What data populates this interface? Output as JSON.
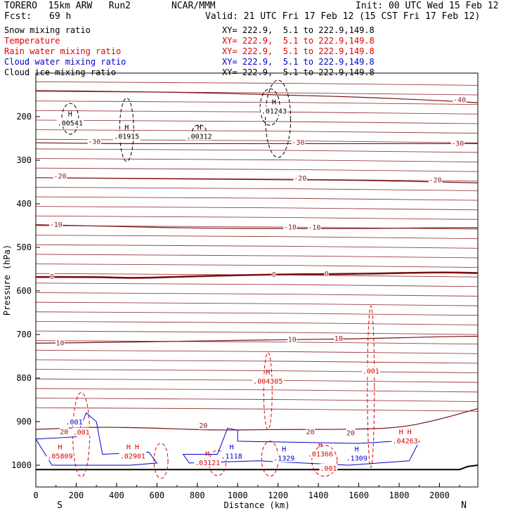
{
  "header": {
    "model": "TORERO  15km ARW   Run2",
    "org": "NCAR/MMM",
    "init": "Init: 00 UTC Wed 15 Feb 12",
    "fcst_label": "Fcst:",
    "fcst_value": "69 h",
    "valid": "Valid: 21 UTC Fri 17 Feb 12 (15 CST Fri 17 Feb 12)"
  },
  "legend": [
    {
      "name": "Snow mixing ratio",
      "xy": "XY= 222.9,  5.1 to 222.9,149.8",
      "color": "#000000"
    },
    {
      "name": "Temperature",
      "xy": "XY= 222.9,  5.1 to 222.9,149.8",
      "color": "#e00000"
    },
    {
      "name": "Rain water mixing ratio",
      "xy": "XY= 222.9,  5.1 to 222.9,149.8",
      "color": "#e00000"
    },
    {
      "name": "Cloud water mixing ratio",
      "xy": "XY= 222.9,  5.1 to 222.9,149.8",
      "color": "#0000cc"
    },
    {
      "name": "Cloud ice mixing ratio",
      "xy": "XY= 222.9,  5.1 to 222.9,149.8",
      "color": "#000000"
    }
  ],
  "chart_data": {
    "type": "line",
    "title": "Vertical cross section",
    "xlabel": "Distance (km)",
    "ylabel": "Pressure (hPa)",
    "xlim": [
      0,
      2190
    ],
    "ylim": [
      1050,
      100
    ],
    "x_ticks": [
      0,
      200,
      400,
      600,
      800,
      1000,
      1200,
      1400,
      1600,
      1800,
      2000
    ],
    "y_ticks": [
      200,
      300,
      400,
      500,
      600,
      700,
      800,
      900,
      1000
    ],
    "end_labels": {
      "left": "S",
      "right": "N"
    },
    "temperature_isotherms": [
      {
        "temp": -40,
        "label": "-40",
        "points": [
          [
            0,
            140
          ],
          [
            400,
            142
          ],
          [
            800,
            145
          ],
          [
            1200,
            150
          ],
          [
            1600,
            155
          ],
          [
            2000,
            163
          ],
          [
            2190,
            168
          ]
        ]
      },
      {
        "temp": -30,
        "label": "-30",
        "points": [
          [
            0,
            260
          ],
          [
            400,
            262
          ],
          [
            800,
            262
          ],
          [
            1200,
            262
          ],
          [
            1600,
            262
          ],
          [
            2000,
            262
          ],
          [
            2190,
            262
          ]
        ]
      },
      {
        "temp": -20,
        "label": "-20",
        "points": [
          [
            0,
            340
          ],
          [
            400,
            342
          ],
          [
            800,
            343
          ],
          [
            1200,
            345
          ],
          [
            1600,
            346
          ],
          [
            2000,
            350
          ],
          [
            2190,
            352
          ]
        ]
      },
      {
        "temp": -10,
        "label": "-10",
        "points": [
          [
            0,
            448
          ],
          [
            400,
            452
          ],
          [
            800,
            456
          ],
          [
            1200,
            457
          ],
          [
            1600,
            457
          ],
          [
            2000,
            455
          ],
          [
            2190,
            455
          ]
        ]
      },
      {
        "temp": 0,
        "label": "0",
        "points": [
          [
            0,
            568
          ],
          [
            300,
            568
          ],
          [
            500,
            571
          ],
          [
            800,
            566
          ],
          [
            1200,
            562
          ],
          [
            1600,
            561
          ],
          [
            2000,
            557
          ],
          [
            2190,
            559
          ]
        ]
      },
      {
        "temp": 10,
        "label": "10",
        "points": [
          [
            0,
            720
          ],
          [
            400,
            718
          ],
          [
            800,
            715
          ],
          [
            1200,
            712
          ],
          [
            1600,
            710
          ],
          [
            2000,
            705
          ],
          [
            2190,
            704
          ]
        ]
      },
      {
        "temp": 20,
        "label": "20",
        "points": [
          [
            0,
            918
          ],
          [
            300,
            912
          ],
          [
            600,
            915
          ],
          [
            900,
            920
          ],
          [
            1200,
            918
          ],
          [
            1500,
            918
          ],
          [
            1800,
            915
          ],
          [
            2000,
            895
          ],
          [
            2190,
            870
          ]
        ]
      }
    ],
    "contour_extrema": [
      {
        "label": "H",
        "value": ".00541",
        "x": 170,
        "p": 215,
        "color": "#000000"
      },
      {
        "label": "H",
        "value": ".01915",
        "x": 450,
        "p": 246,
        "color": "#000000"
      },
      {
        "label": "H",
        "value": ".00312",
        "x": 810,
        "p": 246,
        "color": "#000000"
      },
      {
        "label": "H",
        "value": ".01243",
        "x": 1180,
        "p": 188,
        "color": "#000000"
      },
      {
        "label": "H",
        "value": ".004305",
        "x": 1150,
        "p": 808,
        "color": "#e00000"
      },
      {
        "label": "",
        "value": ".001",
        "x": 1660,
        "p": 785,
        "color": "#e00000"
      },
      {
        "label": "H H",
        "value": ".04263",
        "x": 1830,
        "p": 945,
        "color": "#e00000"
      },
      {
        "label": "H",
        "value": ".05809",
        "x": 120,
        "p": 980,
        "color": "#e00000"
      },
      {
        "label": "H H",
        "value": ".02901",
        "x": 480,
        "p": 980,
        "color": "#e00000"
      },
      {
        "label": "H",
        "value": ".03121",
        "x": 850,
        "p": 995,
        "color": "#e00000"
      },
      {
        "label": "H",
        "value": ".1118",
        "x": 970,
        "p": 980,
        "color": "#0000cc"
      },
      {
        "label": "H",
        "value": ".1329",
        "x": 1230,
        "p": 985,
        "color": "#0000cc"
      },
      {
        "label": "H",
        "value": ".01366",
        "x": 1410,
        "p": 975,
        "color": "#e00000"
      },
      {
        "label": "H",
        "value": ".1309",
        "x": 1590,
        "p": 985,
        "color": "#0000cc"
      },
      {
        "label": "",
        "value": ".001",
        "x": 1450,
        "p": 1008,
        "color": "#e00000"
      },
      {
        "label": "",
        "value": ".001",
        "x": 190,
        "p": 902,
        "color": "#0000cc"
      },
      {
        "label": "",
        "value": ".001",
        "x": 225,
        "p": 925,
        "color": "#e00000"
      },
      {
        "label": "",
        "value": "20",
        "x": 140,
        "p": 924,
        "color": "#8b1a1a"
      },
      {
        "label": "",
        "value": "20",
        "x": 830,
        "p": 910,
        "color": "#8b1a1a"
      },
      {
        "label": "",
        "value": "20",
        "x": 1360,
        "p": 924,
        "color": "#8b1a1a"
      },
      {
        "label": "",
        "value": "20",
        "x": 1560,
        "p": 927,
        "color": "#8b1a1a"
      },
      {
        "label": "",
        "value": "-30",
        "x": 290,
        "p": 258,
        "color": "#8b1a1a"
      },
      {
        "label": "",
        "value": "-30",
        "x": 1300,
        "p": 260,
        "color": "#8b1a1a"
      },
      {
        "label": "",
        "value": "-30",
        "x": 2090,
        "p": 262,
        "color": "#8b1a1a"
      },
      {
        "label": "",
        "value": "-20",
        "x": 120,
        "p": 337,
        "color": "#8b1a1a"
      },
      {
        "label": "",
        "value": "-20",
        "x": 1310,
        "p": 342,
        "color": "#8b1a1a"
      },
      {
        "label": "",
        "value": "-20",
        "x": 1980,
        "p": 346,
        "color": "#8b1a1a"
      },
      {
        "label": "",
        "value": "-10",
        "x": 100,
        "p": 448,
        "color": "#8b1a1a"
      },
      {
        "label": "",
        "value": "-10",
        "x": 1260,
        "p": 454,
        "color": "#8b1a1a"
      },
      {
        "label": "",
        "value": "-10",
        "x": 1380,
        "p": 455,
        "color": "#8b1a1a"
      },
      {
        "label": "",
        "value": "-40",
        "x": 2100,
        "p": 162,
        "color": "#8b1a1a"
      },
      {
        "label": "",
        "value": "0",
        "x": 80,
        "p": 568,
        "color": "#8b1a1a"
      },
      {
        "label": "",
        "value": "0",
        "x": 1180,
        "p": 563,
        "color": "#8b1a1a"
      },
      {
        "label": "",
        "value": "0",
        "x": 1440,
        "p": 561,
        "color": "#8b1a1a"
      },
      {
        "label": "",
        "value": "10",
        "x": 120,
        "p": 720,
        "color": "#8b1a1a"
      },
      {
        "label": "",
        "value": "10",
        "x": 1270,
        "p": 712,
        "color": "#8b1a1a"
      },
      {
        "label": "",
        "value": "10",
        "x": 1500,
        "p": 710,
        "color": "#8b1a1a"
      }
    ]
  }
}
